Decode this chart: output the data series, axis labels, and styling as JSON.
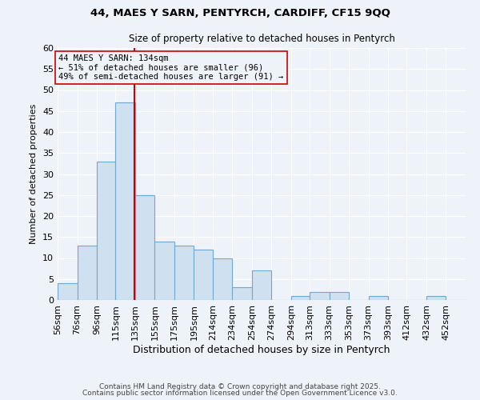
{
  "title1": "44, MAES Y SARN, PENTYRCH, CARDIFF, CF15 9QQ",
  "title2": "Size of property relative to detached houses in Pentyrch",
  "xlabel": "Distribution of detached houses by size in Pentyrch",
  "ylabel": "Number of detached properties",
  "bin_labels": [
    "56sqm",
    "76sqm",
    "96sqm",
    "115sqm",
    "135sqm",
    "155sqm",
    "175sqm",
    "195sqm",
    "214sqm",
    "234sqm",
    "254sqm",
    "274sqm",
    "294sqm",
    "313sqm",
    "333sqm",
    "353sqm",
    "373sqm",
    "393sqm",
    "412sqm",
    "432sqm",
    "452sqm"
  ],
  "bin_edges": [
    56,
    76,
    96,
    115,
    135,
    155,
    175,
    195,
    214,
    234,
    254,
    274,
    294,
    313,
    333,
    353,
    373,
    393,
    412,
    432,
    452
  ],
  "values": [
    4,
    13,
    33,
    47,
    25,
    14,
    13,
    12,
    10,
    3,
    7,
    0,
    1,
    2,
    2,
    0,
    1,
    0,
    0,
    1,
    0
  ],
  "property_size": 134,
  "bar_facecolor": "#cfe0f0",
  "bar_edgecolor": "#6fa8d0",
  "redline_color": "#cc0000",
  "background_color": "#eef2f9",
  "annotation_text": "44 MAES Y SARN: 134sqm\n← 51% of detached houses are smaller (96)\n49% of semi-detached houses are larger (91) →",
  "annotation_box_edgecolor": "#cc0000",
  "ylim": [
    0,
    60
  ],
  "yticks": [
    0,
    5,
    10,
    15,
    20,
    25,
    30,
    35,
    40,
    45,
    50,
    55,
    60
  ],
  "footer1": "Contains HM Land Registry data © Crown copyright and database right 2025.",
  "footer2": "Contains public sector information licensed under the Open Government Licence v3.0."
}
